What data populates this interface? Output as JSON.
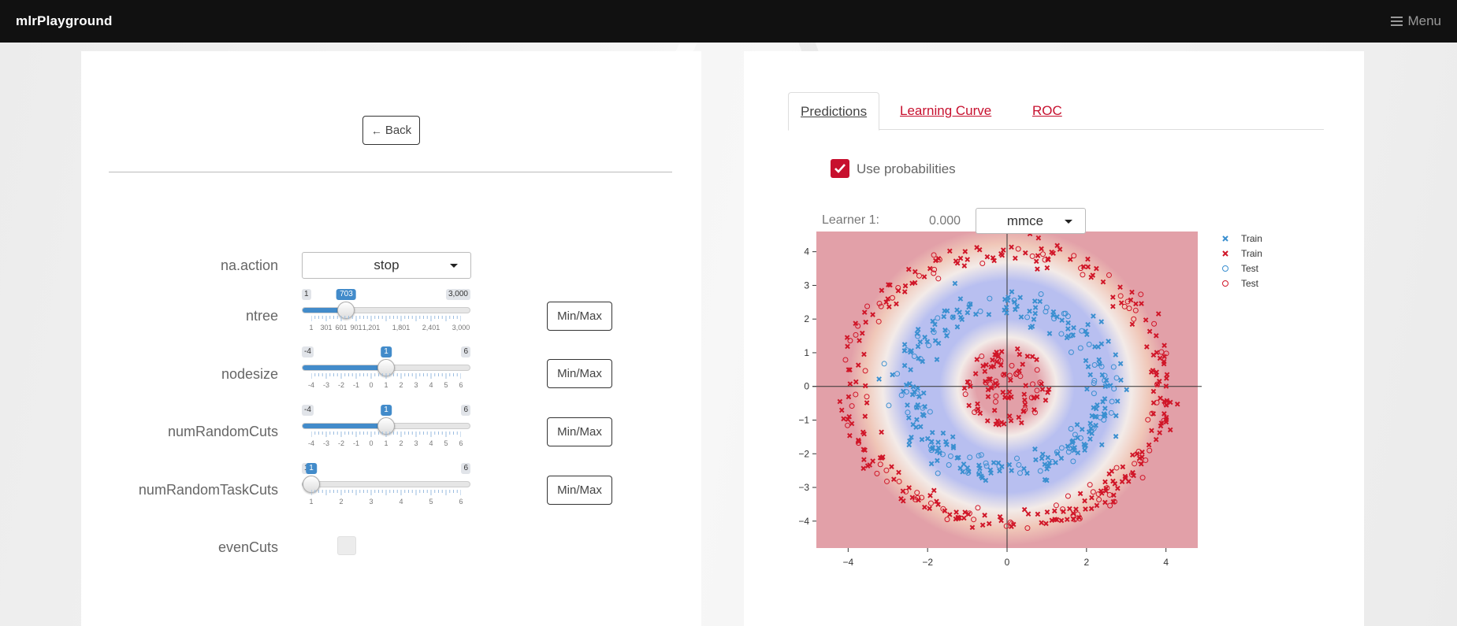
{
  "navbar": {
    "brand": "mlrPlayground",
    "menu_label": "Menu"
  },
  "left": {
    "back_label": "Back",
    "params": [
      {
        "label": "na.action",
        "type": "select",
        "value": "stop"
      },
      {
        "label": "ntree",
        "type": "slider",
        "min": 1,
        "max": 3000,
        "value": 703,
        "min_label": "1",
        "max_label": "3,000",
        "value_label": "703",
        "ticks": [
          "1",
          "301",
          "601",
          "901",
          "1,201",
          "1,801",
          "2,401",
          "3,000"
        ]
      },
      {
        "label": "nodesize",
        "type": "slider",
        "min": -4,
        "max": 6,
        "value": 1,
        "min_label": "-4",
        "max_label": "6",
        "value_label": "1",
        "ticks": [
          "-4",
          "-3",
          "-2",
          "-1",
          "0",
          "1",
          "2",
          "3",
          "4",
          "5",
          "6"
        ]
      },
      {
        "label": "numRandomCuts",
        "type": "slider",
        "min": -4,
        "max": 6,
        "value": 1,
        "min_label": "-4",
        "max_label": "6",
        "value_label": "1",
        "ticks": [
          "-4",
          "-3",
          "-2",
          "-1",
          "0",
          "1",
          "2",
          "3",
          "4",
          "5",
          "6"
        ]
      },
      {
        "label": "numRandomTaskCuts",
        "type": "slider",
        "min": 1,
        "max": 6,
        "value": 1,
        "min_label": "1",
        "max_label": "6",
        "value_label": "1",
        "ticks": [
          "1",
          "2",
          "3",
          "4",
          "5",
          "6"
        ]
      },
      {
        "label": "evenCuts",
        "type": "checkbox",
        "checked": false
      }
    ],
    "minmax_label": "Min/Max"
  },
  "right": {
    "tabs": [
      "Predictions",
      "Learning Curve",
      "ROC"
    ],
    "active_tab": "Predictions",
    "use_prob_label": "Use probabilities",
    "use_prob_checked": true,
    "learner_label": "Learner 1:",
    "learner_value": "0.000",
    "measure": "mmce"
  },
  "chart_data": {
    "type": "scatter",
    "title": "",
    "xlabel": "",
    "ylabel": "",
    "xlim": [
      -4.8,
      4.8
    ],
    "ylim": [
      -4.8,
      4.6
    ],
    "xticks": [
      "-4",
      "-2",
      "0",
      "2",
      "4"
    ],
    "yticks": [
      "4",
      "3",
      "2",
      "1",
      "0",
      "-1",
      "-2",
      "-3",
      "-4"
    ],
    "background": "probability heatmap: red outside, blue ring, red center",
    "legend": [
      {
        "name": "Train",
        "marker": "x",
        "color": "#3a8fd0"
      },
      {
        "name": "Train",
        "marker": "x",
        "color": "#d01628"
      },
      {
        "name": "Test",
        "marker": "o",
        "color": "#3a8fd0"
      },
      {
        "name": "Test",
        "marker": "o",
        "color": "#d01628"
      }
    ],
    "legend_position": "top-right",
    "series": [
      {
        "name": "Train",
        "class": "blue",
        "shape": "ring",
        "radius_mean": 2.5,
        "radius_sd": 0.25
      },
      {
        "name": "Train",
        "class": "red",
        "shape": "ring+center",
        "outer_radius_mean": 4.0,
        "center_radius_max": 1.1
      },
      {
        "name": "Test",
        "class": "blue",
        "shape": "ring",
        "radius_mean": 2.5,
        "radius_sd": 0.25
      },
      {
        "name": "Test",
        "class": "red",
        "shape": "ring+center",
        "outer_radius_mean": 4.0,
        "center_radius_max": 1.1
      }
    ],
    "colors": {
      "red": "#d01628",
      "blue": "#3a8fd0",
      "heat_red": "#e2a0a8",
      "heat_blue": "#b8bff0",
      "heat_white": "#f3ebe8"
    }
  }
}
